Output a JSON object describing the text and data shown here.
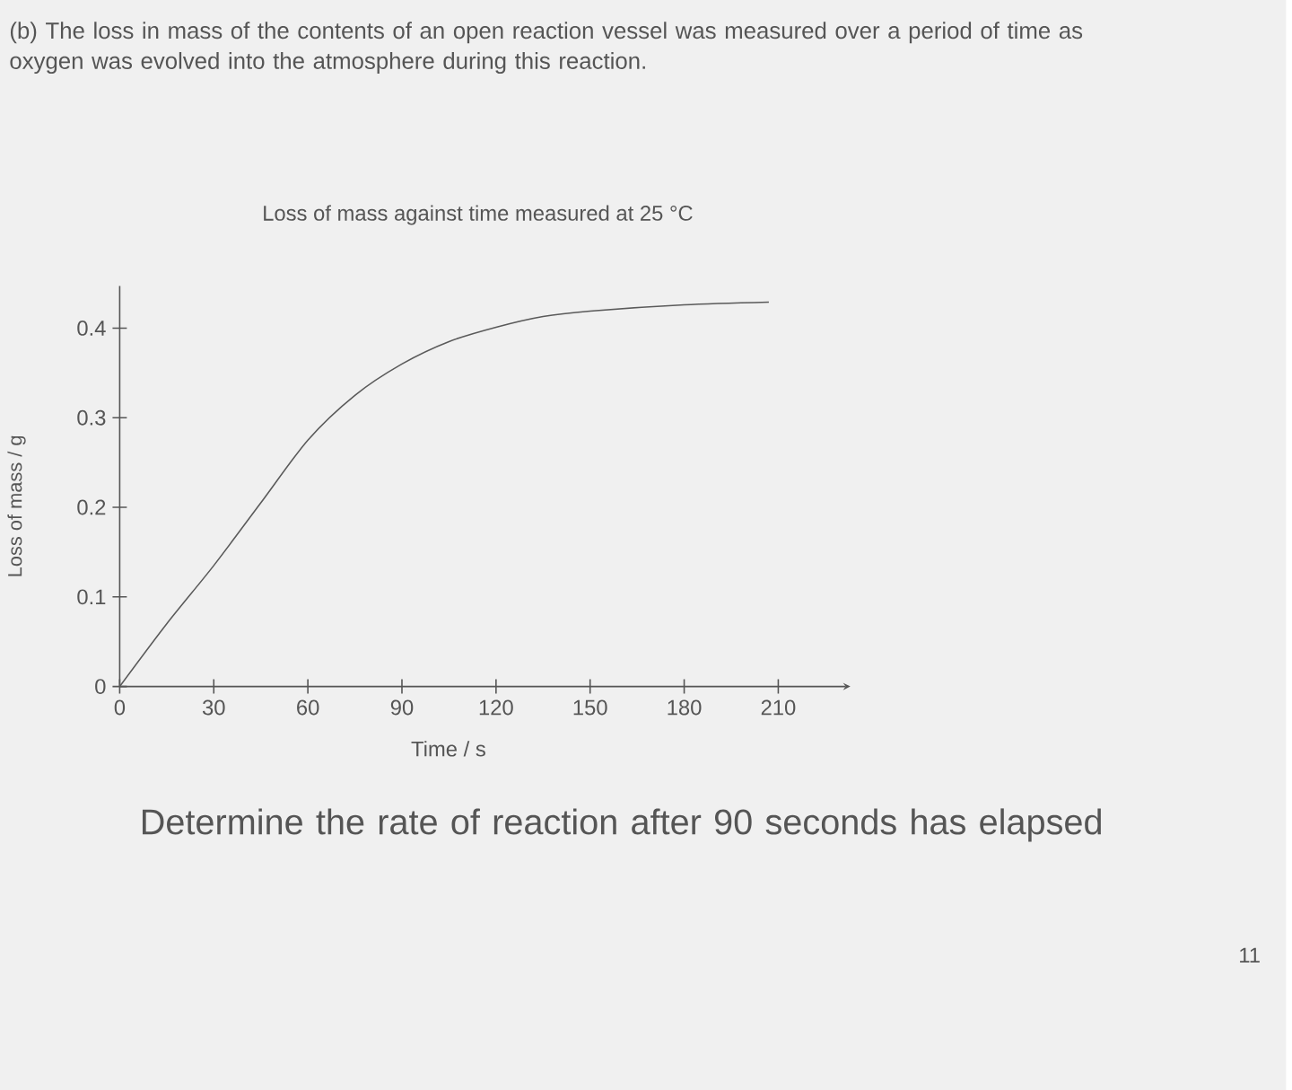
{
  "chart_data": {
    "type": "line",
    "title": "Loss of mass against time measured at 25 °C",
    "xlabel": "Time / s",
    "ylabel": "Loss of mass / g",
    "x": [
      0,
      15,
      30,
      45,
      60,
      75,
      90,
      105,
      120,
      135,
      150,
      180,
      207
    ],
    "values": [
      0,
      0.07,
      0.135,
      0.205,
      0.275,
      0.325,
      0.36,
      0.385,
      0.401,
      0.413,
      0.419,
      0.426,
      0.429
    ],
    "color": "#5a5a5a",
    "xlim": [
      0,
      233
    ],
    "ylim": [
      0,
      0.447
    ],
    "xticks": [
      0,
      30,
      60,
      90,
      120,
      150,
      180,
      210
    ],
    "yticks": [
      0,
      0.1,
      0.2,
      0.3,
      0.4
    ],
    "annotations": [
      "(b) The loss in mass of the contents of an open reaction vessel was measured over a period of time as oxygen was evolved into the atmosphere during this reaction.",
      "Determine the rate of reaction after 90 seconds has elapsed",
      "11"
    ]
  }
}
